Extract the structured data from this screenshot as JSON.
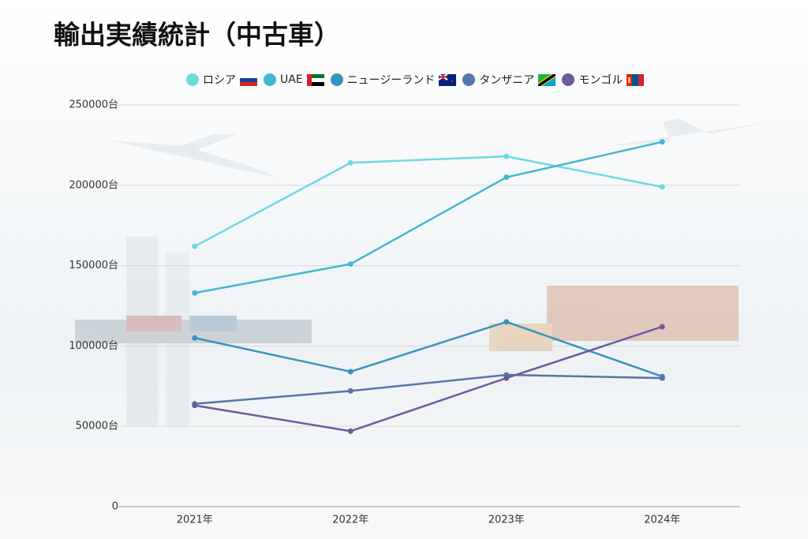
{
  "chart_data": {
    "type": "line",
    "title": "輸出実績統計（中古車）",
    "categories": [
      "2021年",
      "2022年",
      "2023年",
      "2024年"
    ],
    "series": [
      {
        "name": "ロシア",
        "color": "#6fd9e2",
        "values": [
          162000,
          214000,
          218000,
          199000
        ]
      },
      {
        "name": "UAE",
        "color": "#45b6d0",
        "values": [
          133000,
          151000,
          205000,
          227000
        ]
      },
      {
        "name": "ニュージーランド",
        "color": "#3a93bd",
        "values": [
          105000,
          84000,
          115000,
          81000
        ]
      },
      {
        "name": "タンザニア",
        "color": "#5a73a8",
        "values": [
          64000,
          72000,
          82000,
          80000
        ]
      },
      {
        "name": "モンゴル",
        "color": "#6e5b9c",
        "values": [
          63000,
          47000,
          80000,
          112000
        ]
      }
    ],
    "ylim": [
      0,
      250000
    ],
    "yticks": [
      0,
      {
        "value": 50000,
        "label": "50000台"
      },
      {
        "value": 100000,
        "label": "100000台"
      },
      {
        "value": 150000,
        "label": "150000台"
      },
      {
        "value": 200000,
        "label": "200000台"
      },
      {
        "value": 250000,
        "label": "250000台"
      }
    ],
    "grid": true
  }
}
